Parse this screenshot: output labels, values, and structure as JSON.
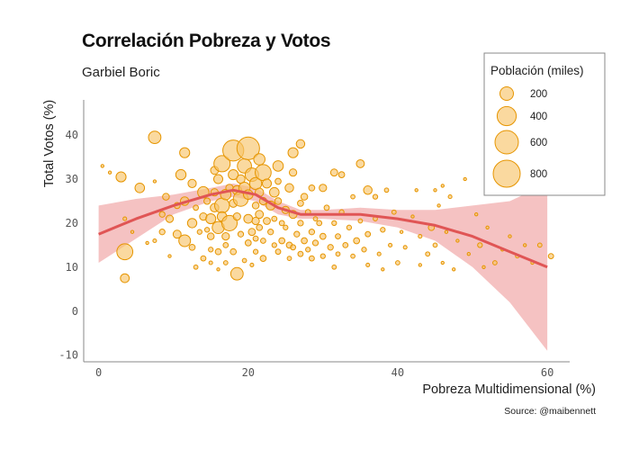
{
  "title": "Correlación Pobreza y Votos",
  "subtitle": "Garbiel Boric",
  "source": "Source: @maibennett",
  "colors": {
    "point_fill": "#f7c46c",
    "point_stroke": "#e69500",
    "trend_line": "#e05555",
    "band_fill": "#ee9a9a",
    "axis": "#888888"
  },
  "chart_data": {
    "type": "scatter",
    "xlabel": "Pobreza Multidimensional (%)",
    "ylabel": "Total Votos (%)",
    "xlim": [
      -2,
      63
    ],
    "ylim": [
      -11.5,
      48
    ],
    "x_ticks": [
      0,
      20,
      40,
      60
    ],
    "y_ticks": [
      -10,
      0,
      10,
      20,
      30,
      40
    ],
    "grid": false,
    "legend": {
      "title": "Población (miles)",
      "placement": "top-right",
      "entries": [
        {
          "label": "200",
          "size": 200
        },
        {
          "label": "400",
          "size": 400
        },
        {
          "label": "600",
          "size": 600
        },
        {
          "label": "800",
          "size": 800
        }
      ]
    },
    "trend": {
      "x": [
        0,
        5,
        10,
        15,
        18,
        21,
        24,
        27,
        30,
        35,
        40,
        45,
        50,
        55,
        60
      ],
      "y": [
        17.5,
        21,
        24,
        26.5,
        27.5,
        26.5,
        23.5,
        22,
        22,
        22,
        21,
        19.5,
        17,
        13.5,
        10
      ],
      "lower": [
        11,
        16.5,
        22,
        25,
        26,
        25,
        22,
        21,
        21,
        20.5,
        19,
        16,
        10,
        2,
        -9
      ],
      "upper": [
        24,
        25.5,
        26.5,
        28,
        29,
        28,
        25,
        23,
        23,
        23.5,
        23,
        23,
        24,
        25,
        29
      ]
    },
    "points": [
      {
        "x": 0.5,
        "y": 33,
        "size": 10
      },
      {
        "x": 1.5,
        "y": 31.5,
        "size": 10
      },
      {
        "x": 3,
        "y": 30.5,
        "size": 110
      },
      {
        "x": 5.5,
        "y": 28,
        "size": 100
      },
      {
        "x": 3.5,
        "y": 21,
        "size": 15
      },
      {
        "x": 3.5,
        "y": 13.5,
        "size": 280
      },
      {
        "x": 3.5,
        "y": 7.5,
        "size": 85
      },
      {
        "x": 4.5,
        "y": 18,
        "size": 10
      },
      {
        "x": 6.5,
        "y": 15.5,
        "size": 10
      },
      {
        "x": 7.5,
        "y": 16,
        "size": 15
      },
      {
        "x": 7.5,
        "y": 29.5,
        "size": 10
      },
      {
        "x": 7.5,
        "y": 39.5,
        "size": 170
      },
      {
        "x": 8.5,
        "y": 22,
        "size": 35
      },
      {
        "x": 8.5,
        "y": 18,
        "size": 35
      },
      {
        "x": 9,
        "y": 26,
        "size": 50
      },
      {
        "x": 9.5,
        "y": 21,
        "size": 60
      },
      {
        "x": 9.5,
        "y": 12.5,
        "size": 10
      },
      {
        "x": 10.5,
        "y": 24,
        "size": 40
      },
      {
        "x": 11,
        "y": 31,
        "size": 115
      },
      {
        "x": 11.5,
        "y": 36,
        "size": 110
      },
      {
        "x": 11.5,
        "y": 16,
        "size": 150
      },
      {
        "x": 10.5,
        "y": 17.5,
        "size": 70
      },
      {
        "x": 11.5,
        "y": 25,
        "size": 80
      },
      {
        "x": 12.5,
        "y": 29,
        "size": 75
      },
      {
        "x": 12.5,
        "y": 20,
        "size": 95
      },
      {
        "x": 12.5,
        "y": 14.5,
        "size": 40
      },
      {
        "x": 13,
        "y": 23.5,
        "size": 30
      },
      {
        "x": 13,
        "y": 10,
        "size": 20
      },
      {
        "x": 13.5,
        "y": 18,
        "size": 25
      },
      {
        "x": 14,
        "y": 27,
        "size": 140
      },
      {
        "x": 14,
        "y": 21.5,
        "size": 60
      },
      {
        "x": 14,
        "y": 12,
        "size": 30
      },
      {
        "x": 14.5,
        "y": 18.5,
        "size": 25
      },
      {
        "x": 14.5,
        "y": 25,
        "size": 45
      },
      {
        "x": 15,
        "y": 21,
        "size": 110
      },
      {
        "x": 15,
        "y": 17,
        "size": 50
      },
      {
        "x": 15,
        "y": 14,
        "size": 25
      },
      {
        "x": 15,
        "y": 11,
        "size": 15
      },
      {
        "x": 15.5,
        "y": 27,
        "size": 60
      },
      {
        "x": 15.5,
        "y": 23.5,
        "size": 80
      },
      {
        "x": 15.5,
        "y": 32,
        "size": 70
      },
      {
        "x": 16,
        "y": 19,
        "size": 160
      },
      {
        "x": 16,
        "y": 30,
        "size": 90
      },
      {
        "x": 16,
        "y": 13.5,
        "size": 40
      },
      {
        "x": 16,
        "y": 9.5,
        "size": 10
      },
      {
        "x": 16.5,
        "y": 33.5,
        "size": 290
      },
      {
        "x": 16.5,
        "y": 24,
        "size": 240
      },
      {
        "x": 16.5,
        "y": 21.5,
        "size": 100
      },
      {
        "x": 17,
        "y": 26.5,
        "size": 120
      },
      {
        "x": 17,
        "y": 17,
        "size": 60
      },
      {
        "x": 17,
        "y": 15,
        "size": 30
      },
      {
        "x": 17,
        "y": 11,
        "size": 20
      },
      {
        "x": 17.5,
        "y": 28,
        "size": 60
      },
      {
        "x": 17.5,
        "y": 20,
        "size": 260
      },
      {
        "x": 18,
        "y": 36.5,
        "size": 480
      },
      {
        "x": 18,
        "y": 31,
        "size": 110
      },
      {
        "x": 18,
        "y": 24.5,
        "size": 70
      },
      {
        "x": 18,
        "y": 13.5,
        "size": 40
      },
      {
        "x": 18.5,
        "y": 8.5,
        "size": 170
      },
      {
        "x": 18.5,
        "y": 27.5,
        "size": 90
      },
      {
        "x": 18.5,
        "y": 21.5,
        "size": 60
      },
      {
        "x": 19,
        "y": 25.5,
        "size": 240
      },
      {
        "x": 19,
        "y": 30,
        "size": 80
      },
      {
        "x": 19,
        "y": 17.5,
        "size": 35
      },
      {
        "x": 19.5,
        "y": 33,
        "size": 220
      },
      {
        "x": 19.5,
        "y": 11.5,
        "size": 20
      },
      {
        "x": 19.5,
        "y": 28,
        "size": 140
      },
      {
        "x": 20,
        "y": 37,
        "size": 560
      },
      {
        "x": 20,
        "y": 26.5,
        "size": 100
      },
      {
        "x": 20,
        "y": 21,
        "size": 85
      },
      {
        "x": 20,
        "y": 15.5,
        "size": 40
      },
      {
        "x": 20.5,
        "y": 31,
        "size": 200
      },
      {
        "x": 20.5,
        "y": 18,
        "size": 55
      },
      {
        "x": 20.5,
        "y": 10.5,
        "size": 15
      },
      {
        "x": 21,
        "y": 29,
        "size": 160
      },
      {
        "x": 21,
        "y": 24,
        "size": 50
      },
      {
        "x": 21,
        "y": 20.5,
        "size": 60
      },
      {
        "x": 21,
        "y": 16.5,
        "size": 30
      },
      {
        "x": 21,
        "y": 13.5,
        "size": 25
      },
      {
        "x": 21.5,
        "y": 34.5,
        "size": 140
      },
      {
        "x": 21.5,
        "y": 27,
        "size": 80
      },
      {
        "x": 21.5,
        "y": 22,
        "size": 70
      },
      {
        "x": 21.5,
        "y": 19,
        "size": 40
      },
      {
        "x": 22,
        "y": 31.5,
        "size": 280
      },
      {
        "x": 22,
        "y": 25,
        "size": 60
      },
      {
        "x": 22,
        "y": 16,
        "size": 30
      },
      {
        "x": 22,
        "y": 12,
        "size": 40
      },
      {
        "x": 22.5,
        "y": 20.5,
        "size": 55
      },
      {
        "x": 22.5,
        "y": 29,
        "size": 90
      },
      {
        "x": 23,
        "y": 24,
        "size": 90
      },
      {
        "x": 23,
        "y": 18,
        "size": 35
      },
      {
        "x": 23.5,
        "y": 27,
        "size": 100
      },
      {
        "x": 23.5,
        "y": 21,
        "size": 30
      },
      {
        "x": 23.5,
        "y": 15,
        "size": 25
      },
      {
        "x": 24,
        "y": 33,
        "size": 120
      },
      {
        "x": 24,
        "y": 29.5,
        "size": 40
      },
      {
        "x": 24,
        "y": 25,
        "size": 50
      },
      {
        "x": 24,
        "y": 13.5,
        "size": 30
      },
      {
        "x": 24.5,
        "y": 16,
        "size": 40
      },
      {
        "x": 24.5,
        "y": 20,
        "size": 30
      },
      {
        "x": 25,
        "y": 23,
        "size": 60
      },
      {
        "x": 25,
        "y": 19,
        "size": 25
      },
      {
        "x": 25.5,
        "y": 28,
        "size": 80
      },
      {
        "x": 25.5,
        "y": 15,
        "size": 40
      },
      {
        "x": 25.5,
        "y": 12,
        "size": 20
      },
      {
        "x": 26,
        "y": 36,
        "size": 110
      },
      {
        "x": 26,
        "y": 31.5,
        "size": 60
      },
      {
        "x": 26,
        "y": 22,
        "size": 70
      },
      {
        "x": 26,
        "y": 14.5,
        "size": 30
      },
      {
        "x": 26.5,
        "y": 17.5,
        "size": 35
      },
      {
        "x": 27,
        "y": 24.5,
        "size": 40
      },
      {
        "x": 27,
        "y": 20,
        "size": 35
      },
      {
        "x": 27,
        "y": 13,
        "size": 30
      },
      {
        "x": 27,
        "y": 38,
        "size": 80
      },
      {
        "x": 27.5,
        "y": 16,
        "size": 40
      },
      {
        "x": 27.5,
        "y": 26,
        "size": 50
      },
      {
        "x": 28,
        "y": 22.5,
        "size": 30
      },
      {
        "x": 28,
        "y": 14,
        "size": 25
      },
      {
        "x": 28.5,
        "y": 18,
        "size": 35
      },
      {
        "x": 28.5,
        "y": 28,
        "size": 40
      },
      {
        "x": 28.5,
        "y": 12,
        "size": 30
      },
      {
        "x": 29,
        "y": 21,
        "size": 20
      },
      {
        "x": 29,
        "y": 15.5,
        "size": 35
      },
      {
        "x": 29.5,
        "y": 20,
        "size": 30
      },
      {
        "x": 30,
        "y": 28,
        "size": 60
      },
      {
        "x": 30,
        "y": 17,
        "size": 40
      },
      {
        "x": 30,
        "y": 12.5,
        "size": 25
      },
      {
        "x": 30.5,
        "y": 23.5,
        "size": 30
      },
      {
        "x": 31,
        "y": 14.5,
        "size": 35
      },
      {
        "x": 31.5,
        "y": 20,
        "size": 25
      },
      {
        "x": 31.5,
        "y": 10,
        "size": 20
      },
      {
        "x": 31.5,
        "y": 31.5,
        "size": 55
      },
      {
        "x": 32,
        "y": 17,
        "size": 30
      },
      {
        "x": 32,
        "y": 13,
        "size": 20
      },
      {
        "x": 32.5,
        "y": 31,
        "size": 40
      },
      {
        "x": 32.5,
        "y": 22.5,
        "size": 25
      },
      {
        "x": 33,
        "y": 15,
        "size": 30
      },
      {
        "x": 33.5,
        "y": 19,
        "size": 25
      },
      {
        "x": 34,
        "y": 12.5,
        "size": 20
      },
      {
        "x": 34,
        "y": 26,
        "size": 20
      },
      {
        "x": 34.5,
        "y": 16,
        "size": 40
      },
      {
        "x": 35,
        "y": 20.5,
        "size": 20
      },
      {
        "x": 35,
        "y": 33.5,
        "size": 70
      },
      {
        "x": 35.5,
        "y": 14,
        "size": 25
      },
      {
        "x": 36,
        "y": 27.5,
        "size": 80
      },
      {
        "x": 36,
        "y": 17.5,
        "size": 30
      },
      {
        "x": 36,
        "y": 10.5,
        "size": 15
      },
      {
        "x": 37,
        "y": 21,
        "size": 20
      },
      {
        "x": 37,
        "y": 26,
        "size": 25
      },
      {
        "x": 37.5,
        "y": 13,
        "size": 15
      },
      {
        "x": 38,
        "y": 18.5,
        "size": 25
      },
      {
        "x": 38,
        "y": 9.5,
        "size": 10
      },
      {
        "x": 38.5,
        "y": 27.5,
        "size": 20
      },
      {
        "x": 39,
        "y": 15,
        "size": 15
      },
      {
        "x": 39.5,
        "y": 22.5,
        "size": 20
      },
      {
        "x": 40,
        "y": 11,
        "size": 20
      },
      {
        "x": 40.5,
        "y": 18,
        "size": 10
      },
      {
        "x": 41,
        "y": 14.5,
        "size": 15
      },
      {
        "x": 42,
        "y": 21.5,
        "size": 10
      },
      {
        "x": 42.5,
        "y": 27.5,
        "size": 10
      },
      {
        "x": 43,
        "y": 10.5,
        "size": 10
      },
      {
        "x": 43,
        "y": 17,
        "size": 15
      },
      {
        "x": 44,
        "y": 13,
        "size": 20
      },
      {
        "x": 44.5,
        "y": 19,
        "size": 40
      },
      {
        "x": 45,
        "y": 27.5,
        "size": 10
      },
      {
        "x": 45,
        "y": 15,
        "size": 20
      },
      {
        "x": 45.5,
        "y": 24,
        "size": 10
      },
      {
        "x": 46,
        "y": 11,
        "size": 10
      },
      {
        "x": 46,
        "y": 28.5,
        "size": 10
      },
      {
        "x": 46.5,
        "y": 18,
        "size": 10
      },
      {
        "x": 47,
        "y": 26,
        "size": 15
      },
      {
        "x": 47.5,
        "y": 9.5,
        "size": 10
      },
      {
        "x": 48,
        "y": 16,
        "size": 10
      },
      {
        "x": 49,
        "y": 30,
        "size": 10
      },
      {
        "x": 49.5,
        "y": 13,
        "size": 10
      },
      {
        "x": 50.5,
        "y": 22,
        "size": 10
      },
      {
        "x": 51,
        "y": 15,
        "size": 25
      },
      {
        "x": 51.5,
        "y": 10,
        "size": 10
      },
      {
        "x": 52,
        "y": 19,
        "size": 10
      },
      {
        "x": 53,
        "y": 11,
        "size": 20
      },
      {
        "x": 54,
        "y": 14,
        "size": 10
      },
      {
        "x": 55,
        "y": 17,
        "size": 10
      },
      {
        "x": 56,
        "y": 12.5,
        "size": 15
      },
      {
        "x": 57,
        "y": 15,
        "size": 10
      },
      {
        "x": 58,
        "y": 11,
        "size": 10
      },
      {
        "x": 59,
        "y": 15,
        "size": 20
      },
      {
        "x": 60.5,
        "y": 12.5,
        "size": 30
      }
    ]
  }
}
